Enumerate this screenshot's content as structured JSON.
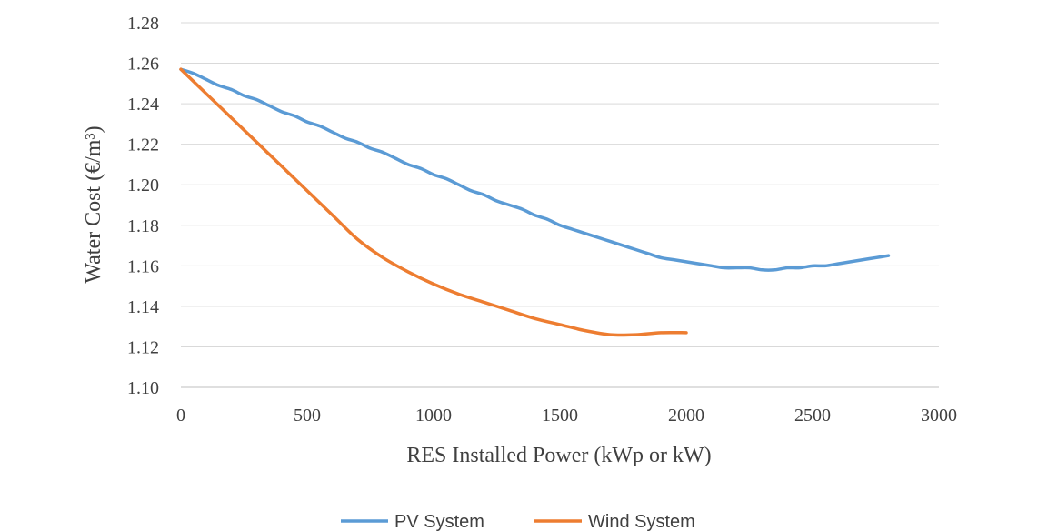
{
  "chart_data": {
    "type": "line",
    "xlabel": "RES Installed Power (kWp or kW)",
    "ylabel": "Water Cost (€/m³)",
    "xlim": [
      0,
      3000
    ],
    "ylim": [
      1.1,
      1.28
    ],
    "xticks": [
      0,
      500,
      1000,
      1500,
      2000,
      2500,
      3000
    ],
    "yticks": [
      1.1,
      1.12,
      1.14,
      1.16,
      1.18,
      1.2,
      1.22,
      1.24,
      1.26,
      1.28
    ],
    "xtick_labels": [
      "0",
      "500",
      "1000",
      "1500",
      "2000",
      "2500",
      "3000"
    ],
    "ytick_labels": [
      "1.10",
      "1.12",
      "1.14",
      "1.16",
      "1.18",
      "1.20",
      "1.22",
      "1.24",
      "1.26",
      "1.28"
    ],
    "grid": "horizontal",
    "legend_position": "bottom",
    "series": [
      {
        "name": "PV System",
        "color": "#5b9bd5",
        "x": [
          0,
          50,
          100,
          150,
          200,
          250,
          300,
          350,
          400,
          450,
          500,
          550,
          600,
          650,
          700,
          750,
          800,
          850,
          900,
          950,
          1000,
          1050,
          1100,
          1150,
          1200,
          1250,
          1300,
          1350,
          1400,
          1450,
          1500,
          1550,
          1600,
          1650,
          1700,
          1750,
          1800,
          1850,
          1900,
          1950,
          2000,
          2050,
          2100,
          2150,
          2200,
          2250,
          2300,
          2350,
          2400,
          2450,
          2500,
          2550,
          2600,
          2650,
          2700,
          2750,
          2800
        ],
        "y": [
          1.257,
          1.255,
          1.252,
          1.249,
          1.247,
          1.244,
          1.242,
          1.239,
          1.236,
          1.234,
          1.231,
          1.229,
          1.226,
          1.223,
          1.221,
          1.218,
          1.216,
          1.213,
          1.21,
          1.208,
          1.205,
          1.203,
          1.2,
          1.197,
          1.195,
          1.192,
          1.19,
          1.188,
          1.185,
          1.183,
          1.18,
          1.178,
          1.176,
          1.174,
          1.172,
          1.17,
          1.168,
          1.166,
          1.164,
          1.163,
          1.162,
          1.161,
          1.16,
          1.159,
          1.159,
          1.159,
          1.158,
          1.158,
          1.159,
          1.159,
          1.16,
          1.16,
          1.161,
          1.162,
          1.163,
          1.164,
          1.165
        ]
      },
      {
        "name": "Wind System",
        "color": "#ed7d31",
        "x": [
          0,
          100,
          200,
          300,
          400,
          500,
          600,
          700,
          800,
          900,
          1000,
          1100,
          1200,
          1300,
          1400,
          1500,
          1600,
          1700,
          1800,
          1900,
          2000
        ],
        "y": [
          1.257,
          1.245,
          1.233,
          1.221,
          1.209,
          1.197,
          1.185,
          1.173,
          1.164,
          1.157,
          1.151,
          1.146,
          1.142,
          1.138,
          1.134,
          1.131,
          1.128,
          1.126,
          1.126,
          1.127,
          1.127
        ]
      }
    ]
  }
}
